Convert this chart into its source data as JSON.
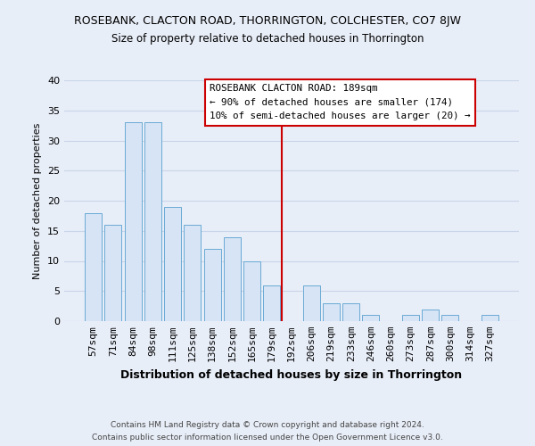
{
  "title": "ROSEBANK, CLACTON ROAD, THORRINGTON, COLCHESTER, CO7 8JW",
  "subtitle": "Size of property relative to detached houses in Thorrington",
  "xlabel": "Distribution of detached houses by size in Thorrington",
  "ylabel": "Number of detached properties",
  "bar_labels": [
    "57sqm",
    "71sqm",
    "84sqm",
    "98sqm",
    "111sqm",
    "125sqm",
    "138sqm",
    "152sqm",
    "165sqm",
    "179sqm",
    "192sqm",
    "206sqm",
    "219sqm",
    "233sqm",
    "246sqm",
    "260sqm",
    "273sqm",
    "287sqm",
    "300sqm",
    "314sqm",
    "327sqm"
  ],
  "bar_heights": [
    18,
    16,
    33,
    33,
    19,
    16,
    12,
    14,
    10,
    6,
    0,
    6,
    3,
    3,
    1,
    0,
    1,
    2,
    1,
    0,
    1
  ],
  "bar_color": "#d6e4f5",
  "bar_edge_color": "#6aaad4",
  "vline_x": 9.5,
  "vline_color": "#cc0000",
  "annotation_title": "ROSEBANK CLACTON ROAD: 189sqm",
  "annotation_line1": "← 90% of detached houses are smaller (174)",
  "annotation_line2": "10% of semi-detached houses are larger (20) →",
  "annotation_box_facecolor": "#ffffff",
  "annotation_box_edgecolor": "#cc0000",
  "ylim": [
    0,
    40
  ],
  "yticks": [
    0,
    5,
    10,
    15,
    20,
    25,
    30,
    35,
    40
  ],
  "footer1": "Contains HM Land Registry data © Crown copyright and database right 2024.",
  "footer2": "Contains public sector information licensed under the Open Government Licence v3.0.",
  "grid_color": "#c8d4e8",
  "background_color": "#e8eef8"
}
